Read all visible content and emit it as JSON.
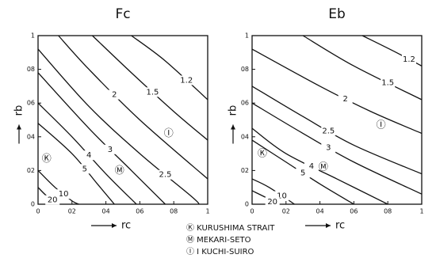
{
  "chart_data": [
    {
      "type": "contour",
      "title": "Fc",
      "xlabel": "rc",
      "ylabel": "rb",
      "xlim": [
        0,
        1
      ],
      "ylim": [
        0,
        1
      ],
      "xticks": [
        0,
        {
          "value": 0.2,
          "label": "02"
        },
        {
          "value": 0.4,
          "label": "04"
        },
        {
          "value": 0.6,
          "label": "06"
        },
        {
          "value": 0.8,
          "label": "08"
        },
        1
      ],
      "yticks": [
        0,
        {
          "value": 0.2,
          "label": "02"
        },
        {
          "value": 0.4,
          "label": "04"
        },
        {
          "value": 0.6,
          "label": "06"
        },
        {
          "value": 0.8,
          "label": "08"
        },
        1
      ],
      "series": [
        {
          "name": "1.2",
          "x": [
            0.55,
            0.75,
            1
          ],
          "y": [
            1,
            0.85,
            0.62
          ]
        },
        {
          "name": "1.5",
          "x": [
            0.32,
            0.55,
            0.8,
            1
          ],
          "y": [
            1,
            0.78,
            0.55,
            0.38
          ]
        },
        {
          "name": "2",
          "x": [
            0.12,
            0.3,
            0.6,
            1
          ],
          "y": [
            1,
            0.8,
            0.5,
            0.15
          ]
        },
        {
          "name": "2.5",
          "x": [
            0,
            0.3,
            0.6,
            0.9,
            0.95
          ],
          "y": [
            0.92,
            0.58,
            0.3,
            0.05,
            0
          ]
        },
        {
          "name": "3",
          "x": [
            0,
            0.3,
            0.55,
            0.75
          ],
          "y": [
            0.78,
            0.45,
            0.2,
            0
          ]
        },
        {
          "name": "4",
          "x": [
            0,
            0.2,
            0.4,
            0.58
          ],
          "y": [
            0.6,
            0.4,
            0.18,
            0
          ]
        },
        {
          "name": "5",
          "x": [
            0,
            0.2,
            0.35,
            0.45
          ],
          "y": [
            0.48,
            0.3,
            0.12,
            0
          ]
        },
        {
          "name": "10",
          "x": [
            0,
            0.1,
            0.2,
            0.24
          ],
          "y": [
            0.2,
            0.1,
            0.02,
            0
          ]
        },
        {
          "name": "20",
          "x": [
            0,
            0.05,
            0.12
          ],
          "y": [
            0.1,
            0.05,
            0
          ]
        }
      ],
      "points": [
        {
          "label": "Ⓘ",
          "x": 0.77,
          "y": 0.42
        },
        {
          "label": "Ⓚ",
          "x": 0.05,
          "y": 0.27
        },
        {
          "label": "Ⓜ",
          "x": 0.48,
          "y": 0.2
        }
      ]
    },
    {
      "type": "contour",
      "title": "Eb",
      "xlabel": "rc",
      "ylabel": "rb",
      "xlim": [
        0,
        1
      ],
      "ylim": [
        0,
        1
      ],
      "xticks": [
        0,
        {
          "value": 0.2,
          "label": "02"
        },
        {
          "value": 0.4,
          "label": "04"
        },
        {
          "value": 0.6,
          "label": "06"
        },
        {
          "value": 0.8,
          "label": "08"
        },
        1
      ],
      "yticks": [
        0,
        {
          "value": 0.2,
          "label": "02"
        },
        {
          "value": 0.4,
          "label": "04"
        },
        {
          "value": 0.6,
          "label": "06"
        },
        {
          "value": 0.8,
          "label": "08"
        },
        1
      ],
      "series": [
        {
          "name": "1.2",
          "x": [
            0.65,
            0.85,
            1
          ],
          "y": [
            1,
            0.9,
            0.82
          ]
        },
        {
          "name": "1.5",
          "x": [
            0.3,
            0.6,
            1
          ],
          "y": [
            1,
            0.82,
            0.62
          ]
        },
        {
          "name": "2",
          "x": [
            0,
            0.4,
            0.7,
            1
          ],
          "y": [
            0.92,
            0.7,
            0.55,
            0.42
          ]
        },
        {
          "name": "2.5",
          "x": [
            0,
            0.3,
            0.6,
            1
          ],
          "y": [
            0.7,
            0.52,
            0.35,
            0.18
          ]
        },
        {
          "name": "3",
          "x": [
            0,
            0.3,
            0.6,
            1
          ],
          "y": [
            0.6,
            0.42,
            0.25,
            0.06
          ]
        },
        {
          "name": "4",
          "x": [
            0,
            0.2,
            0.5,
            0.8
          ],
          "y": [
            0.45,
            0.3,
            0.15,
            0
          ]
        },
        {
          "name": "5",
          "x": [
            0,
            0.2,
            0.4,
            0.6
          ],
          "y": [
            0.38,
            0.25,
            0.12,
            0
          ]
        },
        {
          "name": "10",
          "x": [
            0,
            0.1,
            0.25
          ],
          "y": [
            0.15,
            0.1,
            0
          ]
        },
        {
          "name": "20",
          "x": [
            0,
            0.1,
            0.14
          ],
          "y": [
            0.08,
            0.03,
            0
          ]
        }
      ],
      "points": [
        {
          "label": "Ⓘ",
          "x": 0.76,
          "y": 0.47
        },
        {
          "label": "Ⓚ",
          "x": 0.06,
          "y": 0.3
        },
        {
          "label": "Ⓜ",
          "x": 0.42,
          "y": 0.22
        }
      ]
    }
  ],
  "legend": [
    "Ⓚ KURUSHIMA STRAIT",
    "Ⓜ MEKARI-SETO",
    "Ⓘ I KUCHI-SUIRO"
  ]
}
